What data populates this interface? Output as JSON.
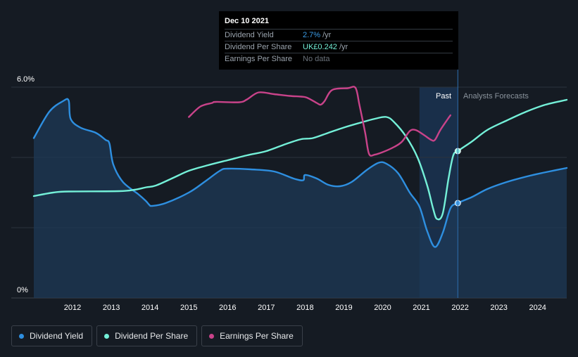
{
  "tooltip": {
    "date": "Dec 10 2021",
    "rows": [
      {
        "label": "Dividend Yield",
        "value": "2.7%",
        "unit": "/yr"
      },
      {
        "label": "Dividend Per Share",
        "value": "UK£0.242",
        "unit": "/yr"
      },
      {
        "label": "Earnings Per Share",
        "value": "No data",
        "unit": ""
      }
    ]
  },
  "regions": {
    "past": "Past",
    "forecast": "Analysts Forecasts"
  },
  "legend": [
    {
      "label": "Dividend Yield",
      "color": "#2e8fe0"
    },
    {
      "label": "Dividend Per Share",
      "color": "#74f0d8"
    },
    {
      "label": "Earnings Per Share",
      "color": "#c9438a"
    }
  ],
  "chart_data": {
    "type": "line",
    "y_ticks": [
      "6.0%",
      "0%"
    ],
    "ylim": [
      0,
      6.0
    ],
    "xlim": [
      2011.0,
      2024.75
    ],
    "x_tick_labels": [
      "2012",
      "2013",
      "2014",
      "2015",
      "2016",
      "2017",
      "2018",
      "2019",
      "2020",
      "2021",
      "2022",
      "2023",
      "2024"
    ],
    "x_ticks": [
      2012,
      2013,
      2014,
      2015,
      2016,
      2017,
      2018,
      2019,
      2020,
      2021,
      2022,
      2023,
      2024
    ],
    "today_x": 2021.94,
    "past_band_start": 2020.95,
    "grid": true,
    "series": [
      {
        "name": "Dividend Yield",
        "color": "#2e8fe0",
        "filled": true,
        "points": [
          [
            2011.0,
            4.55
          ],
          [
            2011.4,
            5.3
          ],
          [
            2011.75,
            5.6
          ],
          [
            2011.9,
            5.62
          ],
          [
            2011.95,
            5.1
          ],
          [
            2012.2,
            4.85
          ],
          [
            2012.6,
            4.7
          ],
          [
            2012.85,
            4.5
          ],
          [
            2012.95,
            4.4
          ],
          [
            2013.05,
            3.8
          ],
          [
            2013.3,
            3.3
          ],
          [
            2013.7,
            2.95
          ],
          [
            2013.9,
            2.75
          ],
          [
            2013.98,
            2.65
          ],
          [
            2014.05,
            2.62
          ],
          [
            2014.4,
            2.7
          ],
          [
            2015.0,
            3.0
          ],
          [
            2015.4,
            3.3
          ],
          [
            2015.8,
            3.62
          ],
          [
            2016.0,
            3.68
          ],
          [
            2016.6,
            3.66
          ],
          [
            2017.2,
            3.6
          ],
          [
            2017.7,
            3.4
          ],
          [
            2017.95,
            3.35
          ],
          [
            2018.0,
            3.5
          ],
          [
            2018.3,
            3.4
          ],
          [
            2018.6,
            3.22
          ],
          [
            2018.9,
            3.18
          ],
          [
            2019.2,
            3.3
          ],
          [
            2019.6,
            3.65
          ],
          [
            2019.9,
            3.85
          ],
          [
            2020.1,
            3.82
          ],
          [
            2020.4,
            3.55
          ],
          [
            2020.7,
            3.0
          ],
          [
            2020.95,
            2.6
          ],
          [
            2021.15,
            1.9
          ],
          [
            2021.35,
            1.45
          ],
          [
            2021.55,
            1.85
          ],
          [
            2021.75,
            2.55
          ],
          [
            2021.94,
            2.7
          ],
          [
            2022.3,
            2.87
          ],
          [
            2022.7,
            3.1
          ],
          [
            2023.2,
            3.3
          ],
          [
            2023.8,
            3.48
          ],
          [
            2024.3,
            3.6
          ],
          [
            2024.75,
            3.7
          ]
        ]
      },
      {
        "name": "Dividend Per Share",
        "color": "#74f0d8",
        "filled": false,
        "points": [
          [
            2011.0,
            2.9
          ],
          [
            2011.5,
            3.0
          ],
          [
            2011.9,
            3.03
          ],
          [
            2013.2,
            3.04
          ],
          [
            2013.6,
            3.08
          ],
          [
            2013.9,
            3.15
          ],
          [
            2014.15,
            3.2
          ],
          [
            2014.6,
            3.42
          ],
          [
            2015.0,
            3.62
          ],
          [
            2015.5,
            3.78
          ],
          [
            2016.0,
            3.92
          ],
          [
            2016.5,
            4.06
          ],
          [
            2017.0,
            4.18
          ],
          [
            2017.5,
            4.38
          ],
          [
            2017.9,
            4.52
          ],
          [
            2018.2,
            4.55
          ],
          [
            2018.6,
            4.7
          ],
          [
            2019.0,
            4.85
          ],
          [
            2019.4,
            4.98
          ],
          [
            2019.8,
            5.1
          ],
          [
            2020.1,
            5.15
          ],
          [
            2020.3,
            5.0
          ],
          [
            2020.6,
            4.6
          ],
          [
            2020.9,
            4.0
          ],
          [
            2021.15,
            3.2
          ],
          [
            2021.3,
            2.55
          ],
          [
            2021.4,
            2.25
          ],
          [
            2021.55,
            2.4
          ],
          [
            2021.7,
            3.4
          ],
          [
            2021.82,
            4.05
          ],
          [
            2021.94,
            4.18
          ],
          [
            2022.3,
            4.45
          ],
          [
            2022.7,
            4.78
          ],
          [
            2023.2,
            5.05
          ],
          [
            2023.7,
            5.3
          ],
          [
            2024.2,
            5.5
          ],
          [
            2024.75,
            5.64
          ]
        ]
      },
      {
        "name": "Earnings Per Share",
        "color": "#c9438a",
        "filled": false,
        "points": [
          [
            2015.0,
            5.15
          ],
          [
            2015.3,
            5.45
          ],
          [
            2015.6,
            5.55
          ],
          [
            2015.7,
            5.58
          ],
          [
            2016.3,
            5.57
          ],
          [
            2016.5,
            5.65
          ],
          [
            2016.8,
            5.85
          ],
          [
            2017.2,
            5.8
          ],
          [
            2017.6,
            5.75
          ],
          [
            2017.9,
            5.73
          ],
          [
            2018.05,
            5.7
          ],
          [
            2018.3,
            5.55
          ],
          [
            2018.4,
            5.5
          ],
          [
            2018.5,
            5.6
          ],
          [
            2018.7,
            5.92
          ],
          [
            2019.1,
            5.97
          ],
          [
            2019.3,
            5.98
          ],
          [
            2019.4,
            5.5
          ],
          [
            2019.55,
            4.7
          ],
          [
            2019.65,
            4.1
          ],
          [
            2019.8,
            4.08
          ],
          [
            2020.0,
            4.15
          ],
          [
            2020.3,
            4.3
          ],
          [
            2020.5,
            4.45
          ],
          [
            2020.7,
            4.75
          ],
          [
            2020.85,
            4.78
          ],
          [
            2021.05,
            4.65
          ],
          [
            2021.25,
            4.5
          ],
          [
            2021.35,
            4.5
          ],
          [
            2021.5,
            4.8
          ],
          [
            2021.75,
            5.2
          ]
        ]
      }
    ]
  }
}
